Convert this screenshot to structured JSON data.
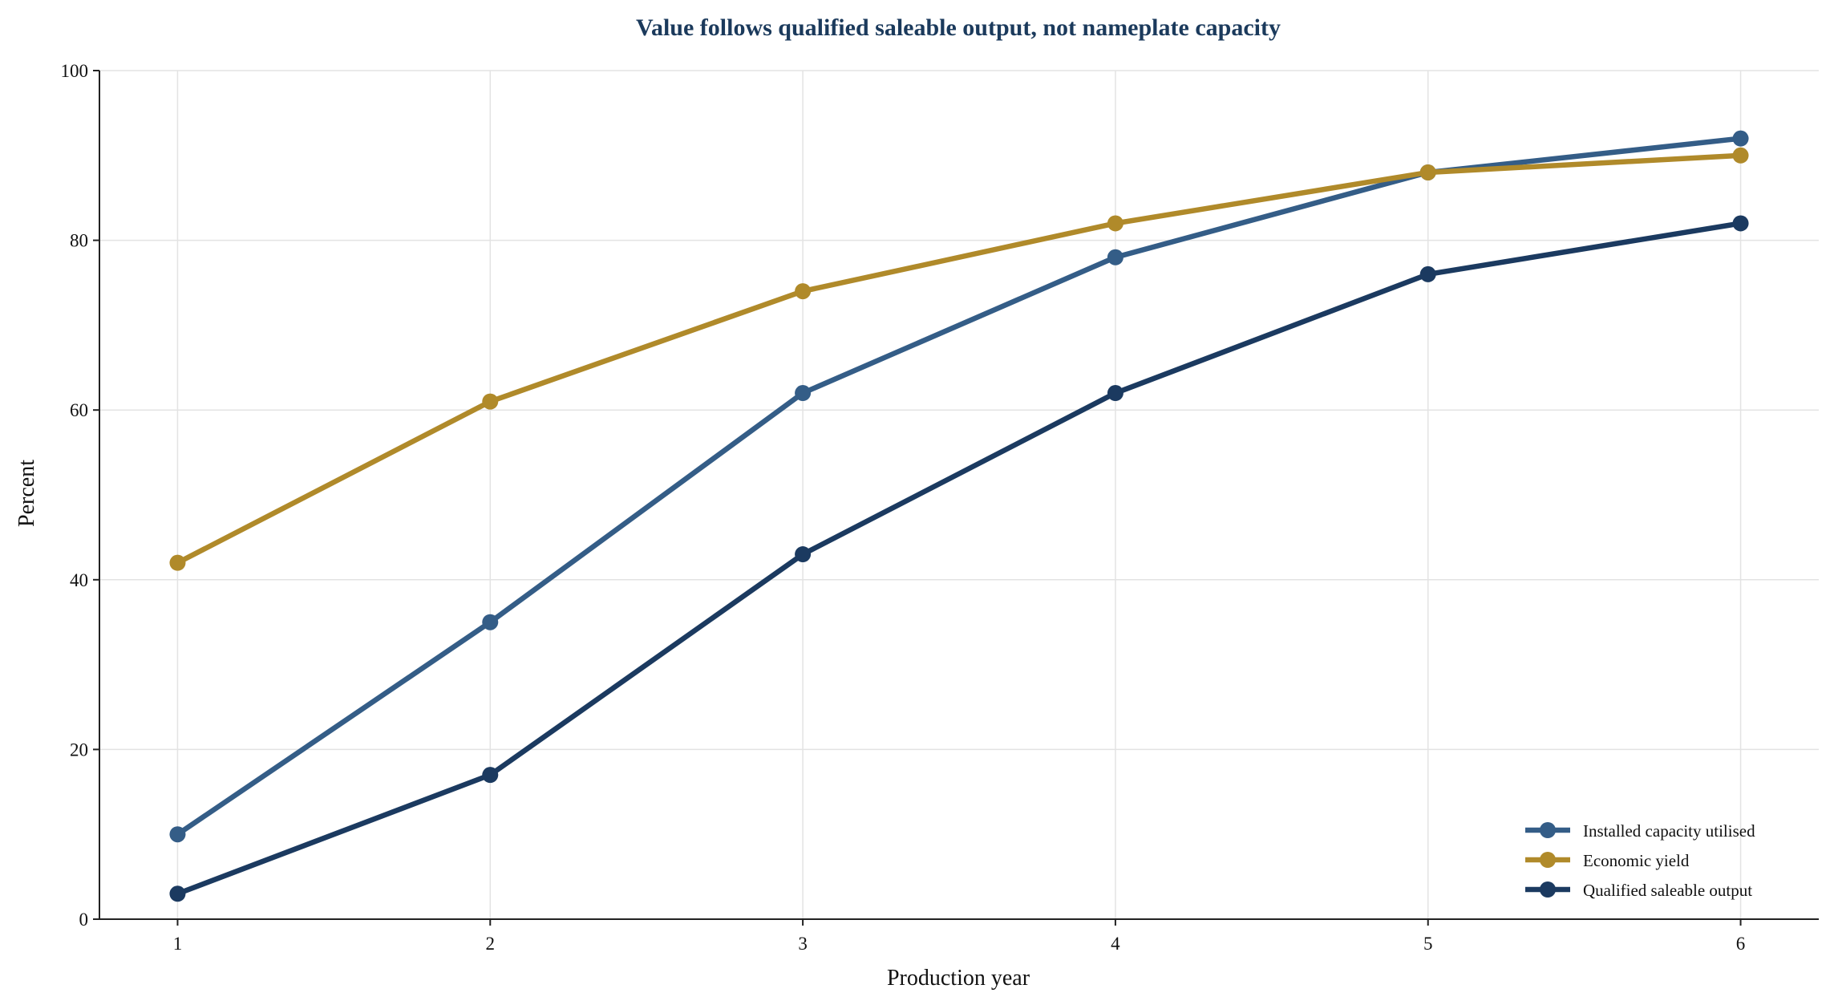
{
  "chart_data": {
    "type": "line",
    "title": "Value follows qualified saleable output, not nameplate capacity",
    "xlabel": "Production year",
    "ylabel": "Percent",
    "x": [
      1,
      2,
      3,
      4,
      5,
      6
    ],
    "xticks": [
      "1",
      "2",
      "3",
      "4",
      "5",
      "6"
    ],
    "yticks": [
      "0",
      "20",
      "40",
      "60",
      "80",
      "100"
    ],
    "ylim": [
      0,
      100
    ],
    "xlim": [
      0.75,
      6.25
    ],
    "grid": true,
    "legend_position": "lower-right",
    "series": [
      {
        "name": "Installed capacity utilised",
        "color": "#345d87",
        "values": [
          10,
          35,
          62,
          78,
          88,
          92
        ]
      },
      {
        "name": "Economic yield",
        "color": "#b08a2a",
        "values": [
          42,
          61,
          74,
          82,
          88,
          90
        ]
      },
      {
        "name": "Qualified saleable output",
        "color": "#1b3a60",
        "values": [
          3,
          17,
          43,
          62,
          76,
          82
        ]
      }
    ]
  }
}
